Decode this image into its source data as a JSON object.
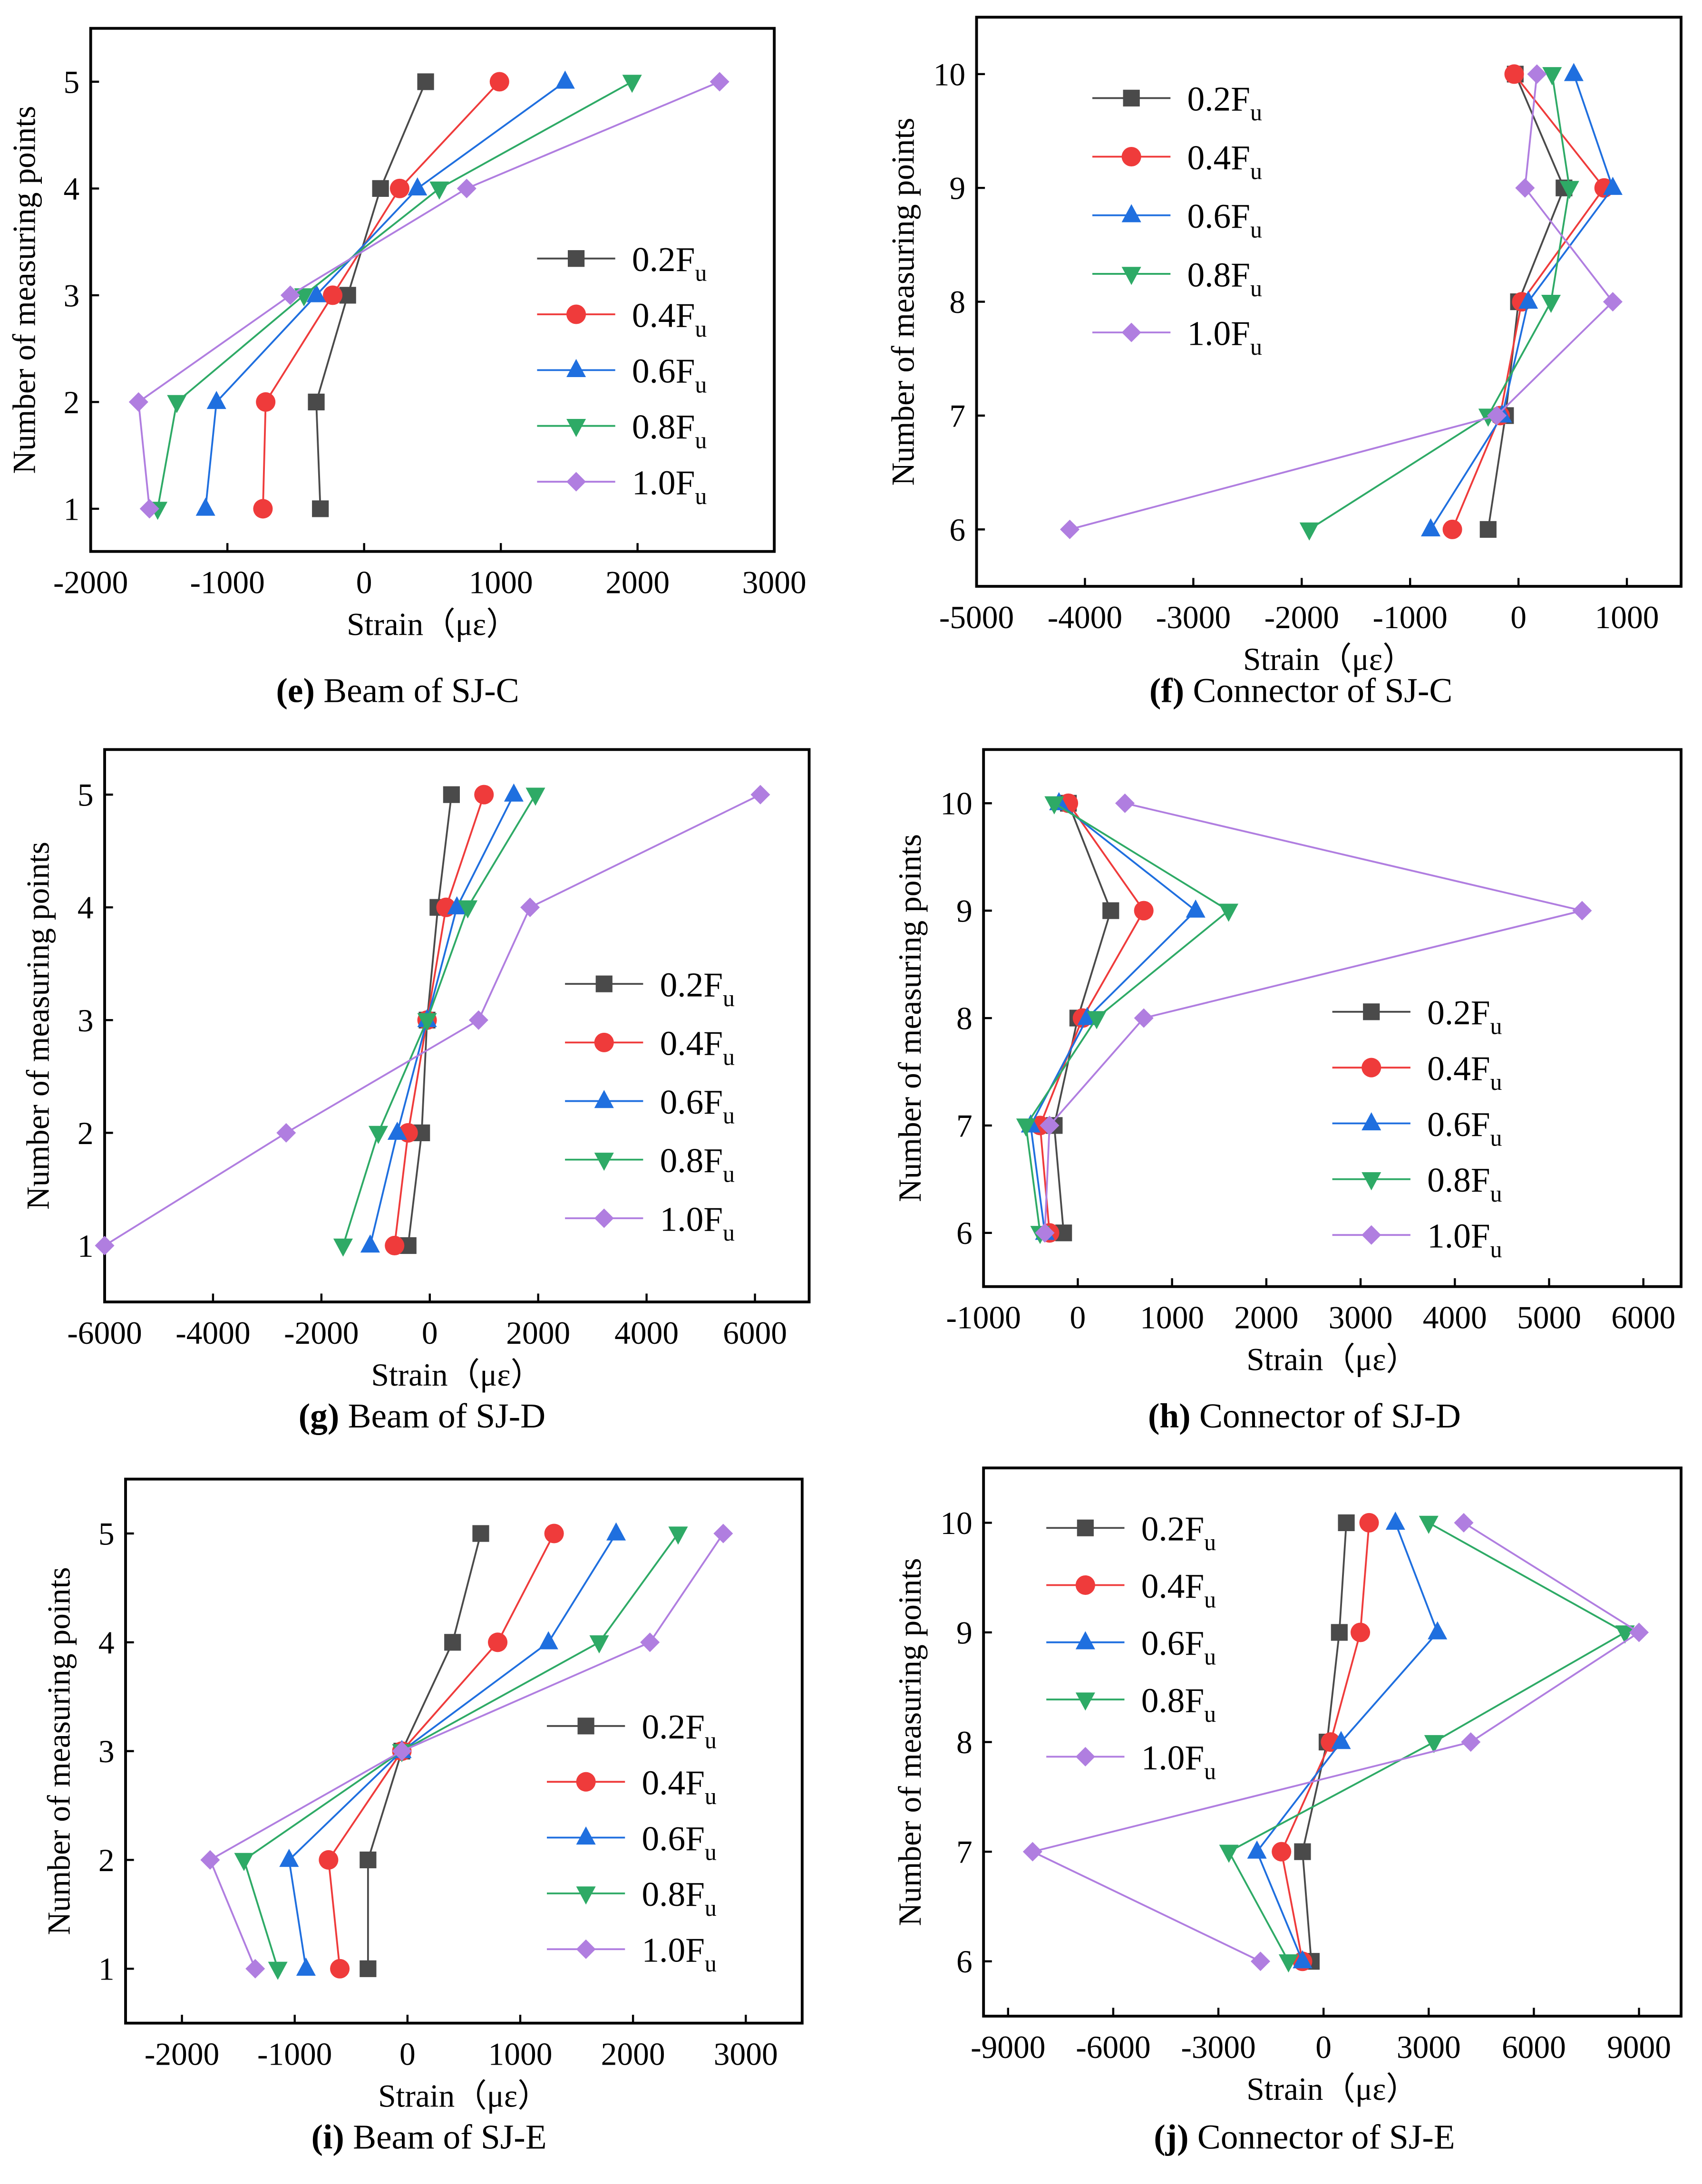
{
  "series_colors": {
    "0.2Fu": "#4a4a4a",
    "0.4Fu": "#ef3b3b",
    "0.6Fu": "#1f6fdf",
    "0.8Fu": "#2eaa66",
    "1.0Fu": "#b07ee0"
  },
  "chart_data": [
    {
      "type": "line",
      "caption_letter": "(e)",
      "caption_text": " Beam of SJ-C",
      "xlabel": "Strain（με）",
      "ylabel": "Number of measuring points",
      "xlim": [
        -2000,
        3000
      ],
      "ylim": [
        0.6,
        5.5
      ],
      "xticks": [
        -2000,
        -1000,
        0,
        1000,
        2000,
        3000
      ],
      "yticks": [
        1,
        2,
        3,
        4,
        5
      ],
      "legend_position": "right-middle",
      "y": [
        1,
        2,
        3,
        4,
        5
      ],
      "series": [
        {
          "name": "0.2F",
          "sub": "u",
          "marker": "square",
          "values": [
            -320,
            -350,
            -120,
            120,
            450
          ]
        },
        {
          "name": "0.4F",
          "sub": "u",
          "marker": "circle",
          "values": [
            -740,
            -720,
            -230,
            260,
            990
          ]
        },
        {
          "name": "0.6F",
          "sub": "u",
          "marker": "triangle-up",
          "values": [
            -1160,
            -1080,
            -350,
            390,
            1470
          ]
        },
        {
          "name": "0.8F",
          "sub": "u",
          "marker": "triangle-down",
          "values": [
            -1510,
            -1370,
            -440,
            550,
            1960
          ]
        },
        {
          "name": "1.0F",
          "sub": "u",
          "marker": "diamond",
          "values": [
            -1570,
            -1650,
            -540,
            750,
            2600
          ]
        }
      ]
    },
    {
      "type": "line",
      "caption_letter": "(f)",
      "caption_text": " Connector of SJ-C",
      "xlabel": "Strain（με）",
      "ylabel": "Number of measuring points",
      "xlim": [
        -5000,
        1500
      ],
      "ylim": [
        5.5,
        10.5
      ],
      "xticks": [
        -5000,
        -4000,
        -3000,
        -2000,
        -1000,
        0,
        1000
      ],
      "yticks": [
        6,
        7,
        8,
        9,
        10
      ],
      "legend_position": "top-left",
      "y": [
        6,
        7,
        8,
        9,
        10
      ],
      "series": [
        {
          "name": "0.2F",
          "sub": "u",
          "marker": "square",
          "values": [
            -280,
            -120,
            0,
            420,
            -30
          ]
        },
        {
          "name": "0.4F",
          "sub": "u",
          "marker": "circle",
          "values": [
            -610,
            -170,
            30,
            790,
            -40
          ]
        },
        {
          "name": "0.6F",
          "sub": "u",
          "marker": "triangle-up",
          "values": [
            -810,
            -150,
            90,
            870,
            510
          ]
        },
        {
          "name": "0.8F",
          "sub": "u",
          "marker": "triangle-down",
          "values": [
            -1930,
            -280,
            300,
            470,
            310
          ]
        },
        {
          "name": "1.0F",
          "sub": "u",
          "marker": "diamond",
          "values": [
            -4140,
            -200,
            870,
            60,
            170
          ]
        }
      ]
    },
    {
      "type": "line",
      "caption_letter": "(g)",
      "caption_text": " Beam of SJ-D",
      "xlabel": "Strain（με）",
      "ylabel": "Number of measuring points",
      "xlim": [
        -6000,
        7000
      ],
      "ylim": [
        0.5,
        5.4
      ],
      "xticks": [
        -6000,
        -4000,
        -2000,
        0,
        2000,
        4000,
        6000
      ],
      "yticks": [
        1,
        2,
        3,
        4,
        5
      ],
      "legend_position": "right-middle",
      "y": [
        1,
        2,
        3,
        4,
        5
      ],
      "series": [
        {
          "name": "0.2F",
          "sub": "u",
          "marker": "square",
          "values": [
            -400,
            -150,
            -50,
            150,
            400
          ]
        },
        {
          "name": "0.4F",
          "sub": "u",
          "marker": "circle",
          "values": [
            -650,
            -400,
            -50,
            300,
            1000
          ]
        },
        {
          "name": "0.6F",
          "sub": "u",
          "marker": "triangle-up",
          "values": [
            -1100,
            -600,
            -50,
            500,
            1550
          ]
        },
        {
          "name": "0.8F",
          "sub": "u",
          "marker": "triangle-down",
          "values": [
            -1600,
            -950,
            -50,
            700,
            1950
          ]
        },
        {
          "name": "1.0F",
          "sub": "u",
          "marker": "diamond",
          "values": [
            -6000,
            -2650,
            900,
            1850,
            6100
          ]
        }
      ]
    },
    {
      "type": "line",
      "caption_letter": "(h)",
      "caption_text": " Connector of SJ-D",
      "xlabel": "Strain（με）",
      "ylabel": "Number of measuring points",
      "xlim": [
        -1000,
        6400
      ],
      "ylim": [
        5.5,
        10.5
      ],
      "xticks": [
        -1000,
        0,
        1000,
        2000,
        3000,
        4000,
        5000,
        6000
      ],
      "yticks": [
        6,
        7,
        8,
        9,
        10
      ],
      "legend_position": "bottom-right",
      "y": [
        6,
        7,
        8,
        9,
        10
      ],
      "series": [
        {
          "name": "0.2F",
          "sub": "u",
          "marker": "square",
          "values": [
            -150,
            -250,
            0,
            350,
            -100
          ]
        },
        {
          "name": "0.4F",
          "sub": "u",
          "marker": "circle",
          "values": [
            -300,
            -400,
            50,
            700,
            -100
          ]
        },
        {
          "name": "0.6F",
          "sub": "u",
          "marker": "triangle-up",
          "values": [
            -350,
            -500,
            100,
            1250,
            -200
          ]
        },
        {
          "name": "0.8F",
          "sub": "u",
          "marker": "triangle-down",
          "values": [
            -400,
            -550,
            200,
            1600,
            -250
          ]
        },
        {
          "name": "1.0F",
          "sub": "u",
          "marker": "diamond",
          "values": [
            -350,
            -300,
            700,
            5350,
            500
          ]
        }
      ]
    },
    {
      "type": "line",
      "caption_letter": "(i)",
      "caption_text": " Beam of SJ-E",
      "xlabel": "Strain（με）",
      "ylabel": "Number of measuring points",
      "xlim": [
        -2500,
        3500
      ],
      "ylim": [
        0.5,
        5.5
      ],
      "xticks": [
        -2000,
        -1000,
        0,
        1000,
        2000,
        3000
      ],
      "yticks": [
        1,
        2,
        3,
        4,
        5
      ],
      "legend_position": "right-bottom",
      "y": [
        1,
        2,
        3,
        4,
        5
      ],
      "series": [
        {
          "name": "0.2F",
          "sub": "u",
          "marker": "square",
          "values": [
            -350,
            -350,
            -50,
            400,
            650
          ]
        },
        {
          "name": "0.4F",
          "sub": "u",
          "marker": "circle",
          "values": [
            -600,
            -700,
            -50,
            800,
            1300
          ]
        },
        {
          "name": "0.6F",
          "sub": "u",
          "marker": "triangle-up",
          "values": [
            -900,
            -1050,
            -50,
            1250,
            1850
          ]
        },
        {
          "name": "0.8F",
          "sub": "u",
          "marker": "triangle-down",
          "values": [
            -1150,
            -1450,
            -50,
            1700,
            2400
          ]
        },
        {
          "name": "1.0F",
          "sub": "u",
          "marker": "diamond",
          "values": [
            -1350,
            -1750,
            -50,
            2150,
            2800
          ]
        }
      ]
    },
    {
      "type": "line",
      "caption_letter": "(j)",
      "caption_text": " Connector of SJ-E",
      "xlabel": "Strain（με）",
      "ylabel": "Number of measuring points",
      "xlim": [
        -9700,
        10200
      ],
      "ylim": [
        5.5,
        10.5
      ],
      "xticks": [
        -9000,
        -6000,
        -3000,
        0,
        3000,
        6000,
        9000
      ],
      "yticks": [
        6,
        7,
        8,
        9,
        10
      ],
      "legend_position": "top-left",
      "y": [
        6,
        7,
        8,
        9,
        10
      ],
      "series": [
        {
          "name": "0.2F",
          "sub": "u",
          "marker": "square",
          "values": [
            -350,
            -600,
            100,
            450,
            650
          ]
        },
        {
          "name": "0.4F",
          "sub": "u",
          "marker": "circle",
          "values": [
            -600,
            -1200,
            200,
            1050,
            1300
          ]
        },
        {
          "name": "0.6F",
          "sub": "u",
          "marker": "triangle-up",
          "values": [
            -600,
            -1900,
            500,
            3250,
            2050
          ]
        },
        {
          "name": "0.8F",
          "sub": "u",
          "marker": "triangle-down",
          "values": [
            -1000,
            -2700,
            3150,
            8600,
            3000
          ]
        },
        {
          "name": "1.0F",
          "sub": "u",
          "marker": "diamond",
          "values": [
            -1800,
            -8300,
            4200,
            9000,
            4000
          ]
        }
      ]
    }
  ]
}
